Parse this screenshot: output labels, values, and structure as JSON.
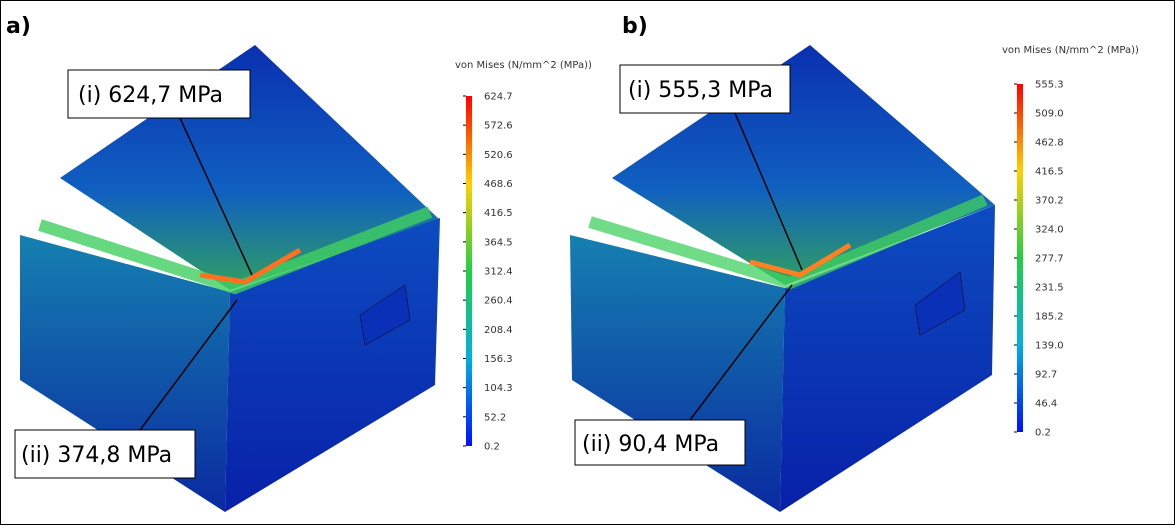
{
  "panels": [
    {
      "label": "a)",
      "legend_title": "von Mises (N/mm^2 (MPa))",
      "legend_ticks": [
        "624.7",
        "572.6",
        "520.6",
        "468.6",
        "416.5",
        "364.5",
        "312.4",
        "260.4",
        "208.4",
        "156.3",
        "104.3",
        "52.2",
        "0.2"
      ],
      "callouts": [
        "(i) 624,7 MPa",
        "(ii) 374,8 MPa"
      ]
    },
    {
      "label": "b)",
      "legend_title": "von Mises (N/mm^2 (MPa))",
      "legend_ticks": [
        "555.3",
        "509.0",
        "462.8",
        "416.5",
        "370.2",
        "324.0",
        "277.7",
        "231.5",
        "185.2",
        "139.0",
        "92.7",
        "46.4",
        "0.2"
      ],
      "callouts": [
        "(i) 555,3 MPa",
        "(ii) 90,4 MPa"
      ]
    }
  ]
}
